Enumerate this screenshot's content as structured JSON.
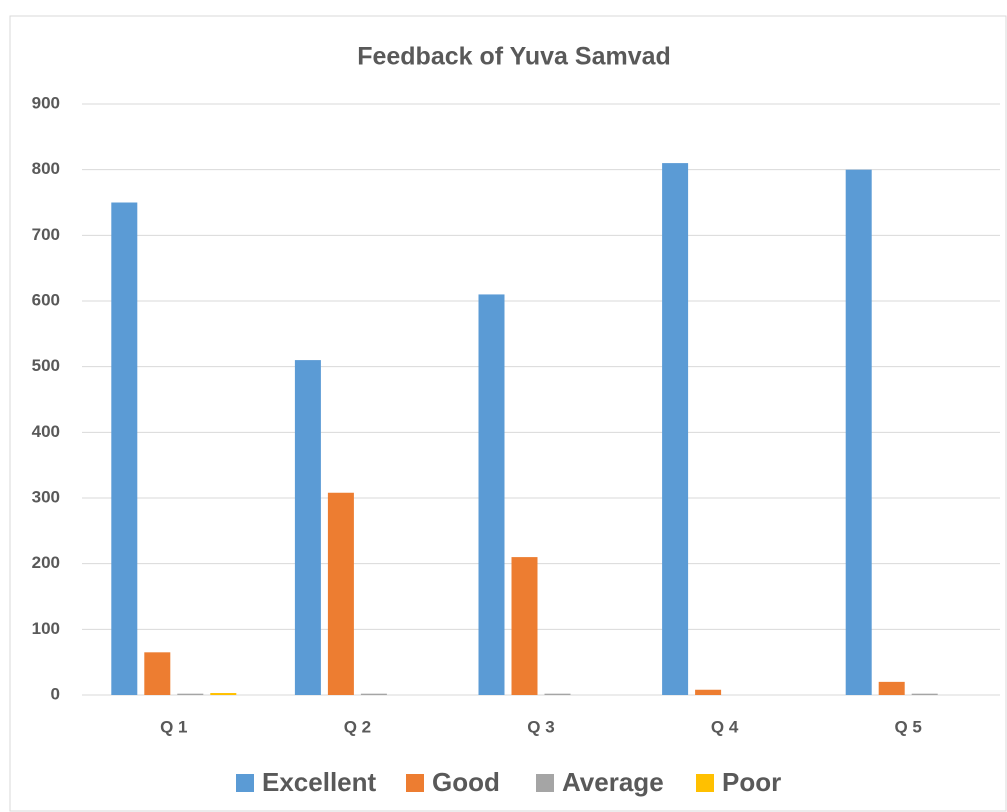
{
  "chart_data": {
    "type": "bar",
    "title": "Feedback of Yuva Samvad",
    "categories": [
      "Q 1",
      "Q 2",
      "Q 3",
      "Q 4",
      "Q 5"
    ],
    "series": [
      {
        "name": "Excellent",
        "color": "#5b9bd5",
        "values": [
          750,
          510,
          610,
          810,
          800
        ]
      },
      {
        "name": "Good",
        "color": "#ed7d31",
        "values": [
          65,
          308,
          210,
          8,
          20
        ]
      },
      {
        "name": "Average",
        "color": "#a5a5a5",
        "values": [
          2,
          2,
          2,
          0,
          2
        ]
      },
      {
        "name": "Poor",
        "color": "#ffc000",
        "values": [
          3,
          0,
          0,
          0,
          0
        ]
      }
    ],
    "ylim": [
      0,
      900
    ],
    "yticks": [
      0,
      100,
      200,
      300,
      400,
      500,
      600,
      700,
      800,
      900
    ],
    "grid": true,
    "legend": "bottom"
  }
}
